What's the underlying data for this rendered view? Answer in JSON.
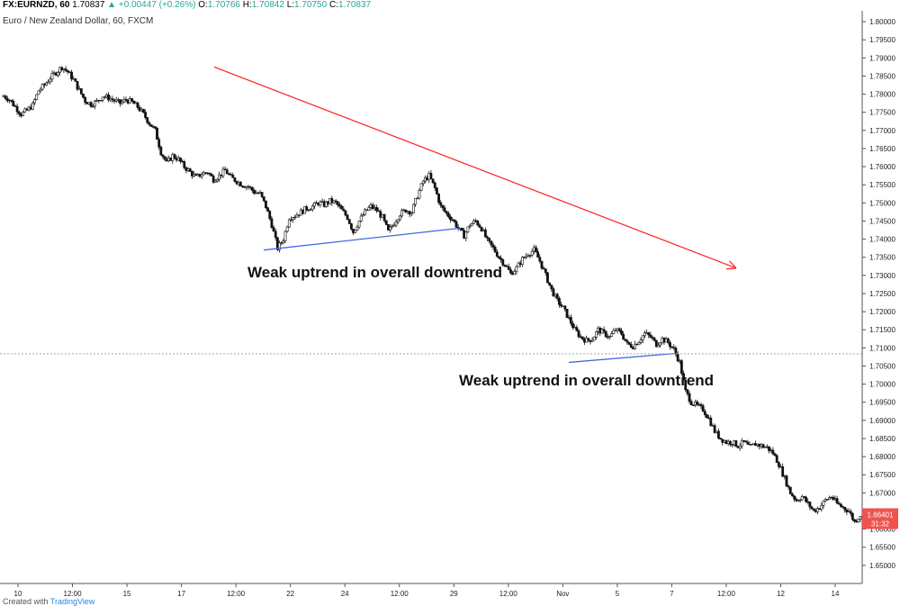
{
  "header": {
    "symbol": "FX:EURNZD, 60",
    "last": "1.70837",
    "change": "▲ +0.00447 (+0.26%)",
    "o_label": "O:",
    "o": "1.70766",
    "h_label": "H:",
    "h": "1.70842",
    "l_label": "L:",
    "l": "1.70750",
    "c_label": "C:",
    "c": "1.70837",
    "subtitle": "Euro / New Zealand Dollar, 60, FXCM"
  },
  "annotations": {
    "first": "Weak uptrend in overall downtrend",
    "second": "Weak uptrend in overall downtrend"
  },
  "footer": {
    "prefix": "Created with",
    "brand": "TradingView"
  },
  "price_tags": {
    "price": "1.66401",
    "countdown": "31:32"
  },
  "colors": {
    "up": "#26a69a",
    "down": "#ef5350",
    "candle": "#111111",
    "trend_down": "#ff2b2b",
    "trend_up": "#3d6be0",
    "tag": "#ef5350"
  },
  "chart_data": {
    "type": "candlestick",
    "title": "Euro / New Zealand Dollar, 60, FXCM",
    "ylim": [
      1.645,
      1.803
    ],
    "y_ticks": [
      "1.80000",
      "1.79500",
      "1.79000",
      "1.78500",
      "1.78000",
      "1.77500",
      "1.77000",
      "1.76500",
      "1.76000",
      "1.75500",
      "1.75000",
      "1.74500",
      "1.74000",
      "1.73500",
      "1.73000",
      "1.72500",
      "1.72000",
      "1.71500",
      "1.71000",
      "1.70500",
      "1.70000",
      "1.69500",
      "1.69000",
      "1.68500",
      "1.68000",
      "1.67500",
      "1.67000",
      "1.66500",
      "1.66000",
      "1.65500",
      "1.65000"
    ],
    "x_ticks": [
      "10",
      "12:00",
      "15",
      "17",
      "12:00",
      "22",
      "24",
      "12:00",
      "29",
      "12:00",
      "Nov",
      "5",
      "7",
      "12:00",
      "12",
      "14"
    ],
    "close_path": [
      1.7795,
      1.7785,
      1.7765,
      1.7745,
      1.7755,
      1.777,
      1.781,
      1.7825,
      1.7845,
      1.786,
      1.7875,
      1.7862,
      1.784,
      1.781,
      1.7782,
      1.7772,
      1.778,
      1.7795,
      1.779,
      1.7782,
      1.7775,
      1.7785,
      1.7778,
      1.7765,
      1.7745,
      1.772,
      1.77,
      1.764,
      1.761,
      1.763,
      1.762,
      1.76,
      1.7585,
      1.757,
      1.758,
      1.7585,
      1.7565,
      1.7575,
      1.759,
      1.757,
      1.756,
      1.755,
      1.7545,
      1.753,
      1.7525,
      1.749,
      1.744,
      1.7375,
      1.74,
      1.746,
      1.7465,
      1.7475,
      1.7485,
      1.749,
      1.75,
      1.7495,
      1.7505,
      1.75,
      1.748,
      1.746,
      1.742,
      1.745,
      1.7475,
      1.749,
      1.748,
      1.746,
      1.742,
      1.7445,
      1.747,
      1.748,
      1.7475,
      1.752,
      1.756,
      1.7575,
      1.754,
      1.749,
      1.747,
      1.7455,
      1.743,
      1.741,
      1.744,
      1.745,
      1.743,
      1.7395,
      1.7375,
      1.735,
      1.733,
      1.7305,
      1.732,
      1.7345,
      1.736,
      1.737,
      1.734,
      1.73,
      1.726,
      1.723,
      1.721,
      1.718,
      1.715,
      1.713,
      1.712,
      1.7125,
      1.715,
      1.714,
      1.713,
      1.715,
      1.714,
      1.711,
      1.7105,
      1.712,
      1.714,
      1.713,
      1.711,
      1.7125,
      1.7115,
      1.7095,
      1.706,
      1.698,
      1.695,
      1.694,
      1.693,
      1.6905,
      1.687,
      1.685,
      1.684,
      1.684,
      1.683,
      1.684,
      1.6825,
      1.6835,
      1.683,
      1.6825,
      1.681,
      1.678,
      1.674,
      1.67,
      1.668,
      1.669,
      1.667,
      1.665,
      1.666,
      1.668,
      1.669,
      1.667,
      1.666,
      1.665,
      1.662,
      1.664
    ],
    "lines": [
      {
        "name": "downtrend",
        "from": [
          "Oct 17",
          1.7875
        ],
        "to": [
          "Nov 9",
          1.732
        ]
      },
      {
        "name": "uptrend-1",
        "from": [
          "Oct 21",
          1.737
        ],
        "to": [
          "Oct 30",
          1.743
        ]
      },
      {
        "name": "uptrend-2",
        "from": [
          "Nov 3",
          1.706
        ],
        "to": [
          "Nov 7",
          1.7085
        ]
      }
    ],
    "last_price": 1.66401,
    "crosshair_price": 1.70837
  }
}
